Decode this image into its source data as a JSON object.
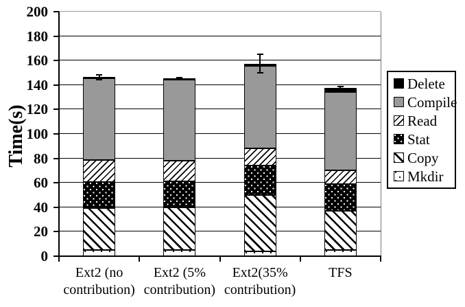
{
  "figure": {
    "background": "#ffffff",
    "text_color": "#000000"
  },
  "chart_data": {
    "type": "bar",
    "stacked": true,
    "title": "",
    "xlabel": "",
    "ylabel": "Time(s)",
    "ylim": [
      0,
      200
    ],
    "ytick_step": 20,
    "yticks": [
      0,
      20,
      40,
      60,
      80,
      100,
      120,
      140,
      160,
      180,
      200
    ],
    "grid": "horizontal",
    "legend_position": "right-outside",
    "categories": [
      "Ext2 (no contribution)",
      "Ext2 (5% contribution)",
      "Ext2(35% contribution)",
      "TFS"
    ],
    "category_label_lines": [
      [
        "Ext2 (no",
        "contribution)"
      ],
      [
        "Ext2 (5%",
        "contribution)"
      ],
      [
        "Ext2(35%",
        "contribution)"
      ],
      [
        "TFS"
      ]
    ],
    "series": [
      {
        "name": "Mkdir",
        "pattern": "sparse-dots",
        "values": [
          5,
          5,
          4,
          5
        ]
      },
      {
        "name": "Copy",
        "pattern": "hatch-back",
        "values": [
          34.5,
          35,
          46,
          32
        ]
      },
      {
        "name": "Stat",
        "pattern": "dots-on-black",
        "values": [
          21,
          21,
          24,
          22
        ]
      },
      {
        "name": "Read",
        "pattern": "hatch-fwd",
        "values": [
          18,
          17,
          14,
          11
        ]
      },
      {
        "name": "Compile",
        "pattern": "solid-gray",
        "values": [
          67,
          66.5,
          67.5,
          64.5
        ]
      },
      {
        "name": "Delete",
        "pattern": "solid-black",
        "values": [
          1,
          1,
          2,
          3
        ]
      }
    ],
    "totals": [
      146.5,
      145.5,
      157.5,
      137.5
    ],
    "error_bars": {
      "plus_minus": [
        2.5,
        1.2,
        8,
        1.7
      ]
    },
    "legend": [
      {
        "label": "Delete",
        "pattern": "solid-black"
      },
      {
        "label": "Compile",
        "pattern": "solid-gray"
      },
      {
        "label": "Read",
        "pattern": "hatch-fwd"
      },
      {
        "label": "Stat",
        "pattern": "dots-on-black"
      },
      {
        "label": "Copy",
        "pattern": "hatch-back"
      },
      {
        "label": "Mkdir",
        "pattern": "sparse-dots"
      }
    ],
    "colors": {
      "compile_gray": "#999999",
      "ink": "#000000",
      "plot_border_gray": "#9a9a9a"
    }
  }
}
